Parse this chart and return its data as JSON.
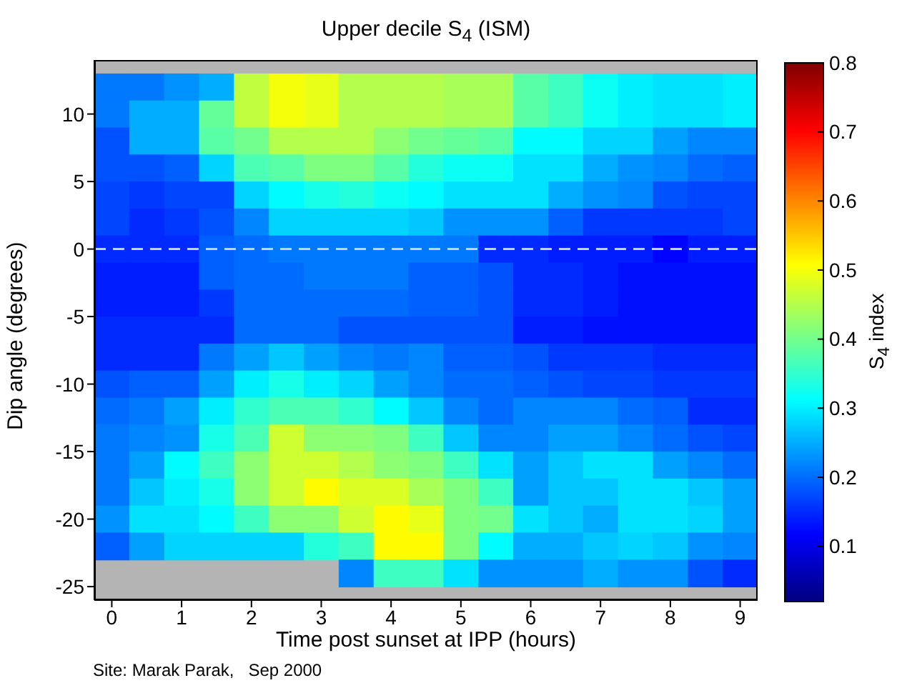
{
  "chart_data": {
    "type": "heatmap",
    "title": "Upper decile S$_{4}$ (ISM)",
    "xlabel": "Time post sunset at IPP (hours)",
    "ylabel": "Dip angle (degrees)",
    "clabel": "S$_{4}$ index",
    "annotations": [
      "Site: Marak Parak,   Sep 2000"
    ],
    "x": [
      0,
      0.5,
      1,
      1.5,
      2,
      2.5,
      3,
      3.5,
      4,
      4.5,
      5,
      5.5,
      6,
      6.5,
      7,
      7.5,
      8,
      8.5,
      9
    ],
    "y": [
      12,
      10,
      8,
      6,
      4,
      2,
      0,
      -2,
      -4,
      -6,
      -8,
      -10,
      -12,
      -14,
      -16,
      -18,
      -20,
      -22,
      -24
    ],
    "cells": [
      [
        0.21,
        0.21,
        0.23,
        0.25,
        0.46,
        0.5,
        0.49,
        0.45,
        0.45,
        0.45,
        0.44,
        0.44,
        0.38,
        0.36,
        0.32,
        0.3,
        0.29,
        0.29,
        0.3
      ],
      [
        0.21,
        0.25,
        0.25,
        0.39,
        0.46,
        0.5,
        0.49,
        0.45,
        0.45,
        0.45,
        0.44,
        0.44,
        0.38,
        0.36,
        0.32,
        0.3,
        0.29,
        0.29,
        0.3
      ],
      [
        0.18,
        0.25,
        0.25,
        0.38,
        0.4,
        0.45,
        0.45,
        0.45,
        0.42,
        0.4,
        0.39,
        0.38,
        0.31,
        0.31,
        0.28,
        0.28,
        0.24,
        0.22,
        0.22
      ],
      [
        0.18,
        0.18,
        0.19,
        0.28,
        0.37,
        0.38,
        0.41,
        0.41,
        0.38,
        0.34,
        0.32,
        0.32,
        0.29,
        0.29,
        0.25,
        0.23,
        0.22,
        0.2,
        0.19
      ],
      [
        0.17,
        0.16,
        0.17,
        0.17,
        0.28,
        0.31,
        0.33,
        0.34,
        0.32,
        0.31,
        0.29,
        0.29,
        0.29,
        0.25,
        0.23,
        0.22,
        0.18,
        0.17,
        0.17
      ],
      [
        0.17,
        0.15,
        0.16,
        0.18,
        0.22,
        0.28,
        0.28,
        0.28,
        0.28,
        0.27,
        0.23,
        0.23,
        0.23,
        0.19,
        0.16,
        0.16,
        0.16,
        0.16,
        0.17
      ],
      [
        0.15,
        0.15,
        0.15,
        0.19,
        0.2,
        0.21,
        0.21,
        0.21,
        0.21,
        0.21,
        0.21,
        0.15,
        0.15,
        0.14,
        0.14,
        0.14,
        0.12,
        0.14,
        0.14
      ],
      [
        0.14,
        0.14,
        0.14,
        0.19,
        0.2,
        0.2,
        0.21,
        0.21,
        0.21,
        0.19,
        0.19,
        0.18,
        0.15,
        0.15,
        0.14,
        0.13,
        0.13,
        0.13,
        0.13
      ],
      [
        0.14,
        0.14,
        0.14,
        0.16,
        0.2,
        0.2,
        0.2,
        0.2,
        0.2,
        0.19,
        0.19,
        0.18,
        0.15,
        0.15,
        0.14,
        0.13,
        0.13,
        0.13,
        0.13
      ],
      [
        0.15,
        0.15,
        0.15,
        0.15,
        0.2,
        0.2,
        0.2,
        0.18,
        0.18,
        0.18,
        0.18,
        0.18,
        0.14,
        0.14,
        0.13,
        0.13,
        0.13,
        0.13,
        0.13
      ],
      [
        0.15,
        0.15,
        0.15,
        0.21,
        0.24,
        0.27,
        0.24,
        0.22,
        0.21,
        0.22,
        0.19,
        0.19,
        0.18,
        0.16,
        0.16,
        0.16,
        0.15,
        0.15,
        0.15
      ],
      [
        0.18,
        0.19,
        0.19,
        0.24,
        0.3,
        0.33,
        0.3,
        0.28,
        0.24,
        0.22,
        0.2,
        0.2,
        0.19,
        0.18,
        0.17,
        0.17,
        0.16,
        0.16,
        0.16
      ],
      [
        0.2,
        0.21,
        0.24,
        0.3,
        0.35,
        0.37,
        0.37,
        0.35,
        0.31,
        0.27,
        0.22,
        0.2,
        0.22,
        0.22,
        0.22,
        0.2,
        0.19,
        0.15,
        0.15
      ],
      [
        0.21,
        0.22,
        0.23,
        0.33,
        0.37,
        0.47,
        0.42,
        0.42,
        0.41,
        0.36,
        0.27,
        0.22,
        0.22,
        0.24,
        0.24,
        0.22,
        0.2,
        0.18,
        0.17
      ],
      [
        0.21,
        0.24,
        0.31,
        0.36,
        0.42,
        0.47,
        0.47,
        0.45,
        0.42,
        0.41,
        0.36,
        0.29,
        0.24,
        0.27,
        0.29,
        0.29,
        0.24,
        0.22,
        0.2
      ],
      [
        0.21,
        0.27,
        0.3,
        0.33,
        0.42,
        0.47,
        0.51,
        0.48,
        0.48,
        0.44,
        0.41,
        0.36,
        0.24,
        0.27,
        0.27,
        0.29,
        0.29,
        0.27,
        0.24
      ],
      [
        0.23,
        0.29,
        0.29,
        0.31,
        0.36,
        0.42,
        0.42,
        0.47,
        0.51,
        0.49,
        0.41,
        0.4,
        0.29,
        0.27,
        0.25,
        0.29,
        0.29,
        0.28,
        0.24
      ],
      [
        0.19,
        0.24,
        0.28,
        0.28,
        0.28,
        0.28,
        0.34,
        0.36,
        0.51,
        0.51,
        0.41,
        0.31,
        0.25,
        0.25,
        0.27,
        0.28,
        0.27,
        0.23,
        0.22
      ],
      [
        null,
        null,
        null,
        null,
        null,
        null,
        null,
        0.22,
        0.36,
        0.36,
        0.29,
        0.23,
        0.23,
        0.23,
        0.25,
        0.23,
        0.23,
        0.18,
        0.15
      ]
    ],
    "xlim": [
      -0.25,
      9.25
    ],
    "ylim": [
      -26,
      14
    ],
    "xticks": [
      0,
      1,
      2,
      3,
      4,
      5,
      6,
      7,
      8,
      9
    ],
    "yticks": [
      -25,
      -20,
      -15,
      -10,
      -5,
      0,
      5,
      10
    ],
    "clim": [
      0.02,
      0.8
    ],
    "cticks": [
      0.1,
      0.2,
      0.3,
      0.4,
      0.5,
      0.6,
      0.7,
      0.8
    ],
    "ref_lines": [
      {
        "axis": "y",
        "value": 0,
        "color": "#c8d4ee",
        "line_style": "dashed"
      }
    ]
  }
}
